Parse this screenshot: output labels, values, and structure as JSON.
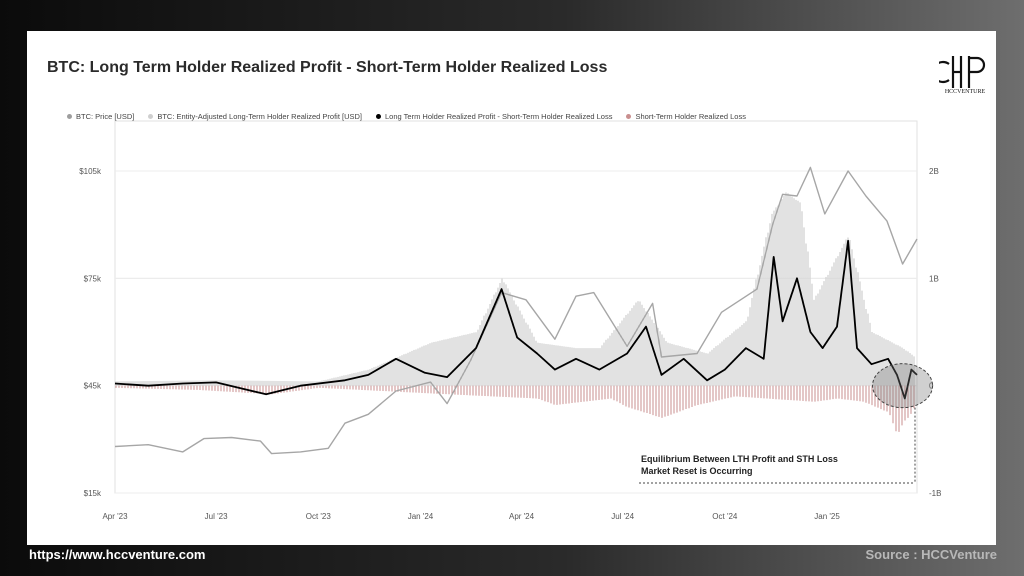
{
  "footer": {
    "url": "https://www.hccventure.com",
    "source": "Source : HCCVenture"
  },
  "logo": {
    "text": "HCCVENTURE"
  },
  "colors": {
    "price": "#a6a6a6",
    "lth_profit": "#d6d6d6",
    "difference": "#000000",
    "sth_loss": "#c98f8f"
  },
  "chart_data": {
    "type": "line",
    "title": "BTC: Long Term Holder Realized Profit - Short-Term Holder Realized Loss",
    "legend": [
      "BTC: Price [USD]",
      "BTC: Entity-Adjusted Long-Term Holder Realized Profit [USD]",
      "Long Term Holder Realized Profit - Short-Term Holder Realized Loss",
      "Short-Term Holder Realized Loss"
    ],
    "legend_position": "top",
    "x_ticks": [
      "Apr '23",
      "Jul '23",
      "Oct '23",
      "Jan '24",
      "Apr '24",
      "Jul '24",
      "Oct '24",
      "Jan '25"
    ],
    "x_tick_dates": [
      "2023-04-01",
      "2023-07-01",
      "2023-10-01",
      "2024-01-01",
      "2024-04-01",
      "2024-07-01",
      "2024-10-01",
      "2025-01-01"
    ],
    "x_range": [
      "2023-04-01",
      "2025-03-23"
    ],
    "y_left_ticks": [
      "$105k",
      "$75k",
      "$45k",
      "$15k"
    ],
    "y_left_range": [
      15000,
      105000
    ],
    "y_right_ticks": [
      "2B",
      "1B",
      "0",
      "-1B"
    ],
    "y_right_range": [
      -1000000000,
      2000000000
    ],
    "grid": true,
    "series": [
      {
        "name": "BTC: Price [USD]",
        "axis": "left",
        "points": [
          [
            "2023-04-01",
            28000
          ],
          [
            "2023-05-01",
            28500
          ],
          [
            "2023-06-01",
            26500
          ],
          [
            "2023-06-20",
            30200
          ],
          [
            "2023-07-15",
            30500
          ],
          [
            "2023-08-10",
            29500
          ],
          [
            "2023-08-20",
            26000
          ],
          [
            "2023-09-15",
            26500
          ],
          [
            "2023-10-10",
            27500
          ],
          [
            "2023-10-25",
            34500
          ],
          [
            "2023-11-15",
            37000
          ],
          [
            "2023-12-10",
            43500
          ],
          [
            "2024-01-10",
            46000
          ],
          [
            "2024-01-25",
            40000
          ],
          [
            "2024-02-15",
            52000
          ],
          [
            "2024-03-14",
            71000
          ],
          [
            "2024-04-05",
            69000
          ],
          [
            "2024-05-01",
            58000
          ],
          [
            "2024-05-20",
            70000
          ],
          [
            "2024-06-05",
            71000
          ],
          [
            "2024-07-05",
            56000
          ],
          [
            "2024-07-28",
            68000
          ],
          [
            "2024-08-05",
            53000
          ],
          [
            "2024-09-06",
            54000
          ],
          [
            "2024-09-28",
            65500
          ],
          [
            "2024-10-30",
            72000
          ],
          [
            "2024-11-13",
            90000
          ],
          [
            "2024-11-22",
            98500
          ],
          [
            "2024-12-05",
            98000
          ],
          [
            "2024-12-17",
            106000
          ],
          [
            "2024-12-30",
            93000
          ],
          [
            "2025-01-20",
            105000
          ],
          [
            "2025-02-05",
            98000
          ],
          [
            "2025-02-24",
            91000
          ],
          [
            "2025-03-10",
            79000
          ],
          [
            "2025-03-23",
            86000
          ]
        ]
      },
      {
        "name": "BTC: Entity-Adjusted Long-Term Holder Realized Profit [USD]",
        "axis": "right",
        "points": [
          [
            "2023-04-01",
            40000000.0
          ],
          [
            "2023-07-01",
            50000000.0
          ],
          [
            "2023-10-01",
            40000000.0
          ],
          [
            "2023-11-15",
            150000000.0
          ],
          [
            "2024-01-10",
            400000000.0
          ],
          [
            "2024-02-20",
            500000000.0
          ],
          [
            "2024-03-14",
            1000000000.0
          ],
          [
            "2024-04-15",
            400000000.0
          ],
          [
            "2024-05-20",
            350000000.0
          ],
          [
            "2024-06-10",
            350000000.0
          ],
          [
            "2024-07-15",
            800000000.0
          ],
          [
            "2024-08-10",
            400000000.0
          ],
          [
            "2024-09-15",
            300000000.0
          ],
          [
            "2024-10-20",
            600000000.0
          ],
          [
            "2024-11-12",
            1600000000.0
          ],
          [
            "2024-11-25",
            1800000000.0
          ],
          [
            "2024-12-08",
            1700000000.0
          ],
          [
            "2024-12-20",
            800000000.0
          ],
          [
            "2025-01-20",
            1400000000.0
          ],
          [
            "2025-02-10",
            500000000.0
          ],
          [
            "2025-03-10",
            350000000.0
          ],
          [
            "2025-03-23",
            250000000.0
          ]
        ]
      },
      {
        "name": "Long Term Holder Realized Profit - Short-Term Holder Realized Loss",
        "axis": "right",
        "points": [
          [
            "2023-04-01",
            20000000.0
          ],
          [
            "2023-05-01",
            0.0
          ],
          [
            "2023-06-01",
            20000000.0
          ],
          [
            "2023-07-01",
            30000000.0
          ],
          [
            "2023-08-15",
            -80000000.0
          ],
          [
            "2023-09-15",
            0.0
          ],
          [
            "2023-10-25",
            50000000.0
          ],
          [
            "2023-11-15",
            100000000.0
          ],
          [
            "2023-12-10",
            250000000.0
          ],
          [
            "2024-01-05",
            120000000.0
          ],
          [
            "2024-01-25",
            80000000.0
          ],
          [
            "2024-02-20",
            350000000.0
          ],
          [
            "2024-03-14",
            900000000.0
          ],
          [
            "2024-03-28",
            450000000.0
          ],
          [
            "2024-04-15",
            300000000.0
          ],
          [
            "2024-05-01",
            150000000.0
          ],
          [
            "2024-05-20",
            250000000.0
          ],
          [
            "2024-06-10",
            150000000.0
          ],
          [
            "2024-07-05",
            300000000.0
          ],
          [
            "2024-07-22",
            550000000.0
          ],
          [
            "2024-08-05",
            100000000.0
          ],
          [
            "2024-08-25",
            250000000.0
          ],
          [
            "2024-09-15",
            50000000.0
          ],
          [
            "2024-10-01",
            150000000.0
          ],
          [
            "2024-10-20",
            350000000.0
          ],
          [
            "2024-11-05",
            250000000.0
          ],
          [
            "2024-11-14",
            1200000000.0
          ],
          [
            "2024-11-22",
            600000000.0
          ],
          [
            "2024-12-05",
            1000000000.0
          ],
          [
            "2024-12-17",
            500000000.0
          ],
          [
            "2024-12-28",
            350000000.0
          ],
          [
            "2025-01-10",
            550000000.0
          ],
          [
            "2025-01-20",
            1350000000.0
          ],
          [
            "2025-01-28",
            350000000.0
          ],
          [
            "2025-02-10",
            200000000.0
          ],
          [
            "2025-02-25",
            250000000.0
          ],
          [
            "2025-03-05",
            100000000.0
          ],
          [
            "2025-03-12",
            -120000000.0
          ],
          [
            "2025-03-18",
            150000000.0
          ],
          [
            "2025-03-23",
            100000000.0
          ]
        ]
      },
      {
        "name": "Short-Term Holder Realized Loss",
        "axis": "right",
        "points": [
          [
            "2023-04-01",
            -20000000.0
          ],
          [
            "2023-06-15",
            -40000000.0
          ],
          [
            "2023-08-20",
            -80000000.0
          ],
          [
            "2023-10-01",
            -20000000.0
          ],
          [
            "2024-01-25",
            -80000000.0
          ],
          [
            "2024-04-15",
            -120000000.0
          ],
          [
            "2024-05-01",
            -180000000.0
          ],
          [
            "2024-06-20",
            -120000000.0
          ],
          [
            "2024-07-05",
            -200000000.0
          ],
          [
            "2024-08-05",
            -300000000.0
          ],
          [
            "2024-09-06",
            -180000000.0
          ],
          [
            "2024-10-10",
            -100000000.0
          ],
          [
            "2024-12-20",
            -150000000.0
          ],
          [
            "2025-01-10",
            -120000000.0
          ],
          [
            "2025-02-03",
            -150000000.0
          ],
          [
            "2025-02-25",
            -250000000.0
          ],
          [
            "2025-03-05",
            -450000000.0
          ],
          [
            "2025-03-10",
            -350000000.0
          ],
          [
            "2025-03-18",
            -250000000.0
          ],
          [
            "2025-03-23",
            -150000000.0
          ]
        ]
      }
    ],
    "annotations": [
      "Equilibrium Between LTH Profit and STH Loss",
      "Market Reset is Occurring"
    ]
  }
}
